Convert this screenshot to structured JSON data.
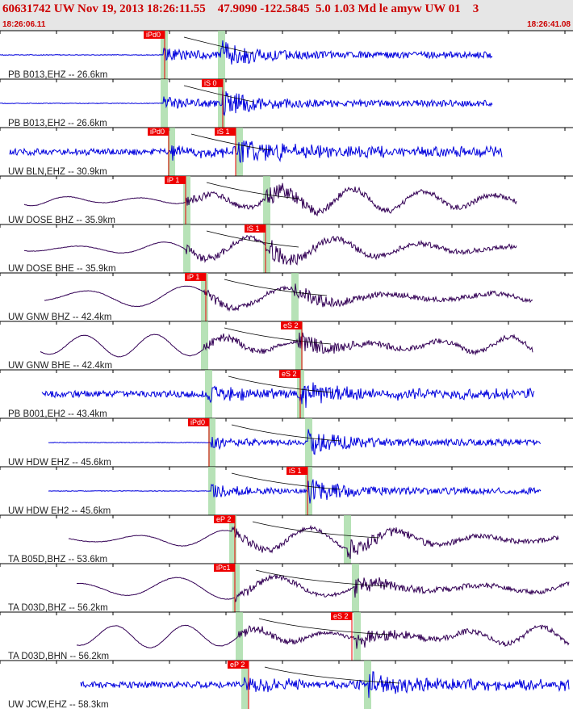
{
  "header": {
    "title": "60631742 UW Nov 19, 2013 18:26:11.55    47.9090 -122.5845  5.0 1.03 Md le amyw UW 01    3",
    "start_time": "18:26:06.11",
    "end_time": "18:26:41.08"
  },
  "traces": [
    {
      "label": "PB B013,EHZ -- 26.6km",
      "color": "#0000dd",
      "picks": [
        "iPd0"
      ]
    },
    {
      "label": "PB B013,EH2 -- 26.6km",
      "color": "#0000dd",
      "picks": [
        "iS 0"
      ]
    },
    {
      "label": "UW BLN,EHZ -- 30.9km",
      "color": "#0000dd",
      "picks": [
        "iPd0",
        "iS 1"
      ]
    },
    {
      "label": "UW DOSE BHZ -- 35.9km",
      "color": "#330055",
      "picks": [
        "iP 1"
      ]
    },
    {
      "label": "UW DOSE BHE -- 35.9km",
      "color": "#330055",
      "picks": [
        "iS 1"
      ]
    },
    {
      "label": "UW GNW BHZ -- 42.4km",
      "color": "#330055",
      "picks": [
        "iP 1"
      ]
    },
    {
      "label": "UW GNW BHE -- 42.4km",
      "color": "#330055",
      "picks": [
        "eS 2"
      ]
    },
    {
      "label": "PB B001,EH2 -- 43.4km",
      "color": "#0000dd",
      "picks": [
        "eS 2"
      ]
    },
    {
      "label": "UW HDW EHZ -- 45.6km",
      "color": "#0000dd",
      "picks": [
        "iPd0"
      ]
    },
    {
      "label": "UW HDW EH2 -- 45.6km",
      "color": "#0000dd",
      "picks": [
        "iS 1"
      ]
    },
    {
      "label": "TA B05D,BHZ -- 53.6km",
      "color": "#330055",
      "picks": [
        "eP 2"
      ]
    },
    {
      "label": "TA D03D,BHZ -- 56.2km",
      "color": "#330055",
      "picks": [
        "iPc1"
      ]
    },
    {
      "label": "TA D03D,BHN -- 56.2km",
      "color": "#330055",
      "picks": [
        "eS 2"
      ]
    },
    {
      "label": "UW JCW,EHZ -- 58.3km",
      "color": "#0000dd",
      "picks": [
        "eP 2"
      ]
    }
  ]
}
